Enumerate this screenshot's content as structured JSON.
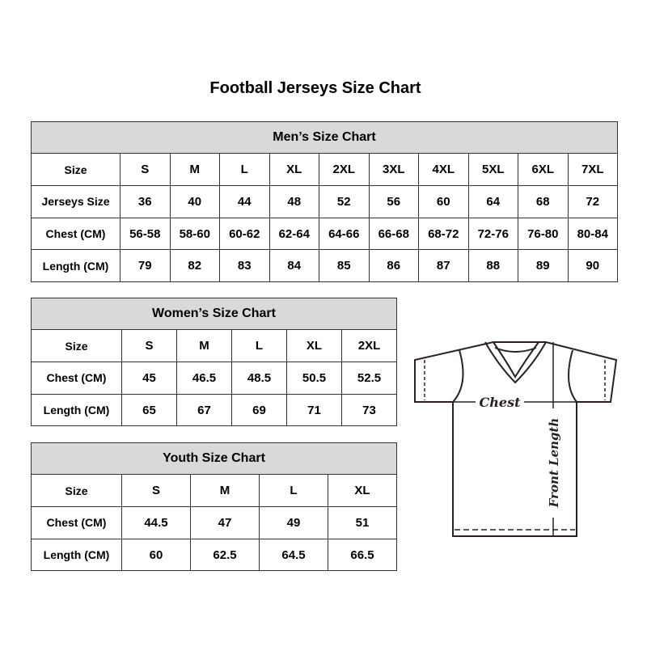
{
  "title": "Football Jerseys Size Chart",
  "men": {
    "title": "Men’s Size Chart",
    "rows": [
      [
        "Size",
        "S",
        "M",
        "L",
        "XL",
        "2XL",
        "3XL",
        "4XL",
        "5XL",
        "6XL",
        "7XL"
      ],
      [
        "Jerseys Size",
        "36",
        "40",
        "44",
        "48",
        "52",
        "56",
        "60",
        "64",
        "68",
        "72"
      ],
      [
        "Chest (CM)",
        "56-58",
        "58-60",
        "60-62",
        "62-64",
        "64-66",
        "66-68",
        "68-72",
        "72-76",
        "76-80",
        "80-84"
      ],
      [
        "Length (CM)",
        "79",
        "82",
        "83",
        "84",
        "85",
        "86",
        "87",
        "88",
        "89",
        "90"
      ]
    ]
  },
  "women": {
    "title": "Women’s Size Chart",
    "rows": [
      [
        "Size",
        "S",
        "M",
        "L",
        "XL",
        "2XL"
      ],
      [
        "Chest (CM)",
        "45",
        "46.5",
        "48.5",
        "50.5",
        "52.5"
      ],
      [
        "Length (CM)",
        "65",
        "67",
        "69",
        "71",
        "73"
      ]
    ]
  },
  "youth": {
    "title": "Youth Size Chart",
    "rows": [
      [
        "Size",
        "S",
        "M",
        "L",
        "XL"
      ],
      [
        "Chest (CM)",
        "44.5",
        "47",
        "49",
        "51"
      ],
      [
        "Length (CM)",
        "60",
        "62.5",
        "64.5",
        "66.5"
      ]
    ]
  },
  "diagram": {
    "chest_label": "Chest",
    "length_label": "Front Length"
  },
  "colors": {
    "header_bg": "#d9d9d9",
    "border": "#333333",
    "drawing": "#2a2020"
  }
}
